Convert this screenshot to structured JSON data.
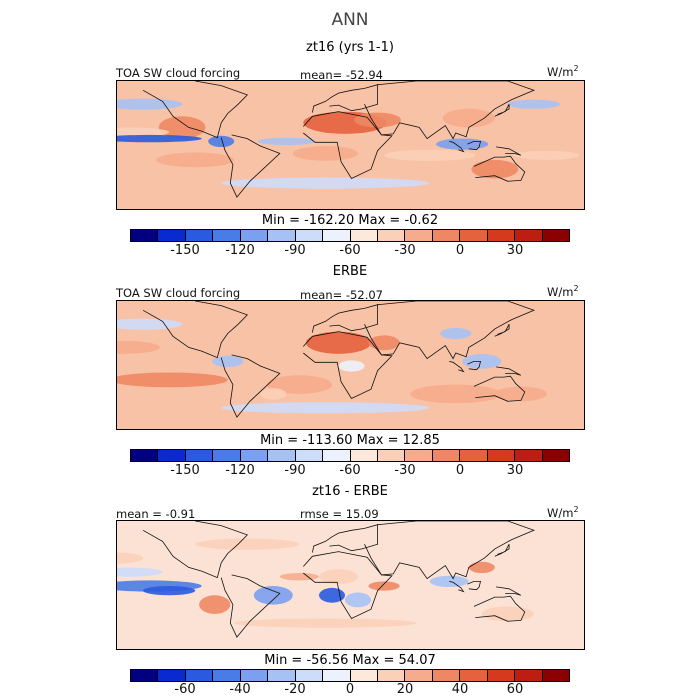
{
  "title": "ANN",
  "colors": {
    "main": [
      "#000080",
      "#0a2ad1",
      "#2a5ae0",
      "#4a7ce8",
      "#7aa0ef",
      "#a6c2f5",
      "#cddcf9",
      "#ecf2fd",
      "#fde8dc",
      "#fbd0b8",
      "#f6ac8c",
      "#ee8864",
      "#e4623e",
      "#d63a1e",
      "#bd1e12",
      "#8b0000"
    ],
    "diff": [
      "#000080",
      "#0a2ad1",
      "#2a5ae0",
      "#4a7ce8",
      "#7aa0ef",
      "#a6c2f5",
      "#cddcf9",
      "#ecf2fd",
      "#fde8dc",
      "#fbd0b8",
      "#f6ac8c",
      "#ee8864",
      "#e4623e",
      "#d63a1e",
      "#bd1e12",
      "#8b0000"
    ]
  },
  "chart_data": [
    {
      "type": "heatmap",
      "title": "zt16 (yrs 1-1)",
      "field_label": "TOA SW cloud forcing",
      "stat_text": "mean=  -52.94",
      "unit_base": "W/m",
      "unit_exp": "2",
      "minmax_text": "Min =  -162.20  Max =    -0.62",
      "colorbar": {
        "levels": 16,
        "ticks": [
          "-150",
          "-120",
          "-90",
          "-60",
          "-30",
          "0",
          "30"
        ],
        "tick_values": [
          -150,
          -120,
          -90,
          -60,
          -30,
          0,
          30
        ],
        "range": [
          -180,
          60
        ]
      },
      "blobs": [
        {
          "lon": 15,
          "lat": 25,
          "rx": 32,
          "ry": 12,
          "lvl": 12
        },
        {
          "lon": 40,
          "lat": 28,
          "rx": 18,
          "ry": 8,
          "lvl": 11
        },
        {
          "lon": 110,
          "lat": 30,
          "rx": 20,
          "ry": 10,
          "lvl": 10
        },
        {
          "lon": -110,
          "lat": 20,
          "rx": 18,
          "ry": 12,
          "lvl": 11
        },
        {
          "lon": 0,
          "lat": -8,
          "rx": 25,
          "ry": 8,
          "lvl": 10
        },
        {
          "lon": 130,
          "lat": -25,
          "rx": 18,
          "ry": 10,
          "lvl": 11
        },
        {
          "lon": -100,
          "lat": -15,
          "rx": 30,
          "ry": 8,
          "lvl": 10
        },
        {
          "lon": 170,
          "lat": -10,
          "rx": 25,
          "ry": 5,
          "lvl": 9
        },
        {
          "lon": 80,
          "lat": -10,
          "rx": 35,
          "ry": 6,
          "lvl": 9
        },
        {
          "lon": -150,
          "lat": 15,
          "rx": 30,
          "ry": 5,
          "lvl": 9
        },
        {
          "lon": -135,
          "lat": 8,
          "rx": 40,
          "ry": 4,
          "lvl": 2
        },
        {
          "lon": -80,
          "lat": 5,
          "rx": 10,
          "ry": 6,
          "lvl": 3
        },
        {
          "lon": 105,
          "lat": 2,
          "rx": 20,
          "ry": 6,
          "lvl": 4
        },
        {
          "lon": -30,
          "lat": 5,
          "rx": 22,
          "ry": 4,
          "lvl": 5
        },
        {
          "lon": 0,
          "lat": -40,
          "rx": 80,
          "ry": 6,
          "lvl": 6
        },
        {
          "lon": -140,
          "lat": 45,
          "rx": 30,
          "ry": 6,
          "lvl": 5
        },
        {
          "lon": 160,
          "lat": 45,
          "rx": 20,
          "ry": 5,
          "lvl": 5
        }
      ]
    },
    {
      "type": "heatmap",
      "title": "ERBE",
      "field_label": "TOA SW cloud forcing",
      "stat_text": "mean=  -52.07",
      "unit_base": "W/m",
      "unit_exp": "2",
      "minmax_text": "Min =  -113.60  Max =   12.85",
      "colorbar": {
        "levels": 16,
        "ticks": [
          "-150",
          "-120",
          "-90",
          "-60",
          "-30",
          "0",
          "30"
        ],
        "tick_values": [
          -150,
          -120,
          -90,
          -60,
          -30,
          0,
          30
        ],
        "range": [
          -180,
          60
        ]
      },
      "blobs": [
        {
          "lon": 10,
          "lat": 25,
          "rx": 25,
          "ry": 12,
          "lvl": 12
        },
        {
          "lon": 45,
          "lat": 25,
          "rx": 12,
          "ry": 8,
          "lvl": 11
        },
        {
          "lon": -120,
          "lat": -15,
          "rx": 45,
          "ry": 8,
          "lvl": 11
        },
        {
          "lon": -155,
          "lat": 20,
          "rx": 28,
          "ry": 7,
          "lvl": 10
        },
        {
          "lon": 100,
          "lat": -30,
          "rx": 35,
          "ry": 10,
          "lvl": 10
        },
        {
          "lon": -20,
          "lat": -20,
          "rx": 25,
          "ry": 10,
          "lvl": 10
        },
        {
          "lon": 150,
          "lat": -30,
          "rx": 20,
          "ry": 8,
          "lvl": 10
        },
        {
          "lon": -40,
          "lat": -30,
          "rx": 10,
          "ry": 6,
          "lvl": 9
        },
        {
          "lon": 120,
          "lat": 5,
          "rx": 15,
          "ry": 8,
          "lvl": 5
        },
        {
          "lon": -75,
          "lat": 5,
          "rx": 12,
          "ry": 6,
          "lvl": 5
        },
        {
          "lon": 100,
          "lat": 35,
          "rx": 12,
          "ry": 6,
          "lvl": 5
        },
        {
          "lon": 0,
          "lat": -45,
          "rx": 80,
          "ry": 6,
          "lvl": 6
        },
        {
          "lon": -140,
          "lat": 45,
          "rx": 30,
          "ry": 6,
          "lvl": 6
        },
        {
          "lon": 20,
          "lat": 0,
          "rx": 10,
          "ry": 6,
          "lvl": 7
        }
      ]
    },
    {
      "type": "heatmap",
      "title": "zt16 - ERBE",
      "field_label": "mean =  -0.91",
      "stat_text": "rmse =  15.09",
      "unit_base": "W/m",
      "unit_exp": "2",
      "minmax_text": "Min =  -56.56  Max =   54.07",
      "colorbar": {
        "levels": 16,
        "ticks": [
          "-60",
          "-40",
          "-20",
          "0",
          "20",
          "40",
          "60"
        ],
        "tick_values": [
          -60,
          -40,
          -20,
          0,
          20,
          40,
          60
        ],
        "range": [
          -80,
          80
        ]
      },
      "blobs": [
        {
          "lon": -135,
          "lat": 0,
          "rx": 40,
          "ry": 6,
          "lvl": 3
        },
        {
          "lon": -120,
          "lat": -5,
          "rx": 20,
          "ry": 5,
          "lvl": 2
        },
        {
          "lon": 5,
          "lat": -10,
          "rx": 10,
          "ry": 8,
          "lvl": 2
        },
        {
          "lon": -40,
          "lat": -10,
          "rx": 15,
          "ry": 10,
          "lvl": 4
        },
        {
          "lon": 25,
          "lat": -15,
          "rx": 10,
          "ry": 8,
          "lvl": 5
        },
        {
          "lon": 95,
          "lat": 5,
          "rx": 15,
          "ry": 6,
          "lvl": 5
        },
        {
          "lon": 45,
          "lat": 0,
          "rx": 12,
          "ry": 5,
          "lvl": 11
        },
        {
          "lon": -85,
          "lat": -20,
          "rx": 12,
          "ry": 10,
          "lvl": 11
        },
        {
          "lon": 120,
          "lat": 20,
          "rx": 10,
          "ry": 6,
          "lvl": 11
        },
        {
          "lon": -20,
          "lat": 10,
          "rx": 15,
          "ry": 4,
          "lvl": 10
        },
        {
          "lon": 10,
          "lat": 10,
          "rx": 15,
          "ry": 8,
          "lvl": 9
        },
        {
          "lon": -60,
          "lat": 45,
          "rx": 40,
          "ry": 6,
          "lvl": 9
        },
        {
          "lon": 140,
          "lat": -30,
          "rx": 20,
          "ry": 8,
          "lvl": 9
        },
        {
          "lon": -160,
          "lat": 30,
          "rx": 20,
          "ry": 6,
          "lvl": 9
        },
        {
          "lon": 0,
          "lat": -40,
          "rx": 70,
          "ry": 5,
          "lvl": 9
        },
        {
          "lon": -150,
          "lat": 15,
          "rx": 25,
          "ry": 5,
          "lvl": 6
        }
      ]
    }
  ]
}
